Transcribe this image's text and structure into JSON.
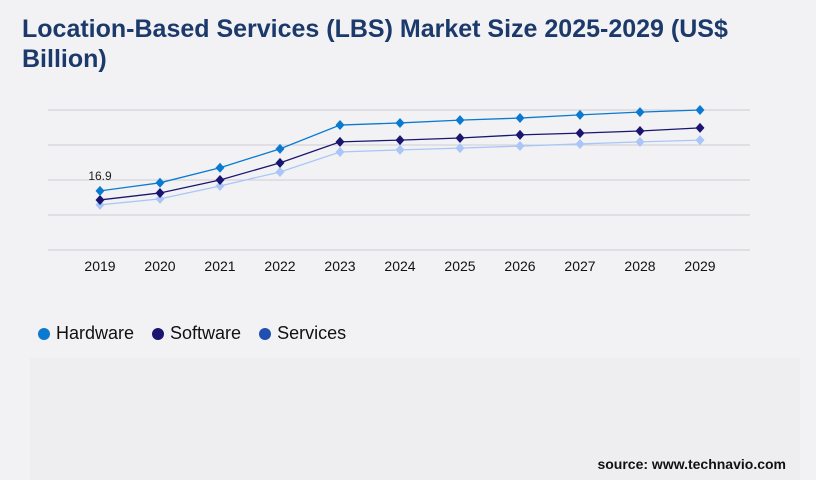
{
  "title": "Location-Based Services (LBS) Market Size 2025-2029 (US$ Billion)",
  "source": "source: www.technavio.com",
  "chart_data": {
    "type": "line",
    "title": "Location-Based Services (LBS) Market Size 2025-2029 (US$ Billion)",
    "x": [
      "2019",
      "2020",
      "2021",
      "2022",
      "2023",
      "2024",
      "2025",
      "2026",
      "2027",
      "2028",
      "2029"
    ],
    "ylim": [
      0,
      40
    ],
    "grid": true,
    "legend": "bottom-left",
    "annotations": [
      {
        "series": "Hardware",
        "x": "2019",
        "label": "16.9"
      }
    ],
    "series": [
      {
        "name": "Hardware",
        "color": "#0a7ad1",
        "legend_color": "#0a7ad1",
        "values": [
          16.9,
          19.2,
          23.5,
          28.9,
          35.7,
          36.3,
          37.1,
          37.7,
          38.6,
          39.4,
          40.0
        ]
      },
      {
        "name": "Software",
        "color": "#1a1670",
        "legend_color": "#1a1670",
        "values": [
          14.3,
          16.3,
          20.0,
          24.9,
          30.9,
          31.4,
          32.0,
          32.9,
          33.4,
          34.0,
          34.9
        ]
      },
      {
        "name": "Services",
        "color": "#a9c6f7",
        "legend_color": "#1f4fb0",
        "values": [
          12.9,
          14.6,
          18.3,
          22.3,
          28.0,
          28.6,
          29.1,
          29.7,
          30.3,
          30.9,
          31.4
        ]
      }
    ]
  }
}
